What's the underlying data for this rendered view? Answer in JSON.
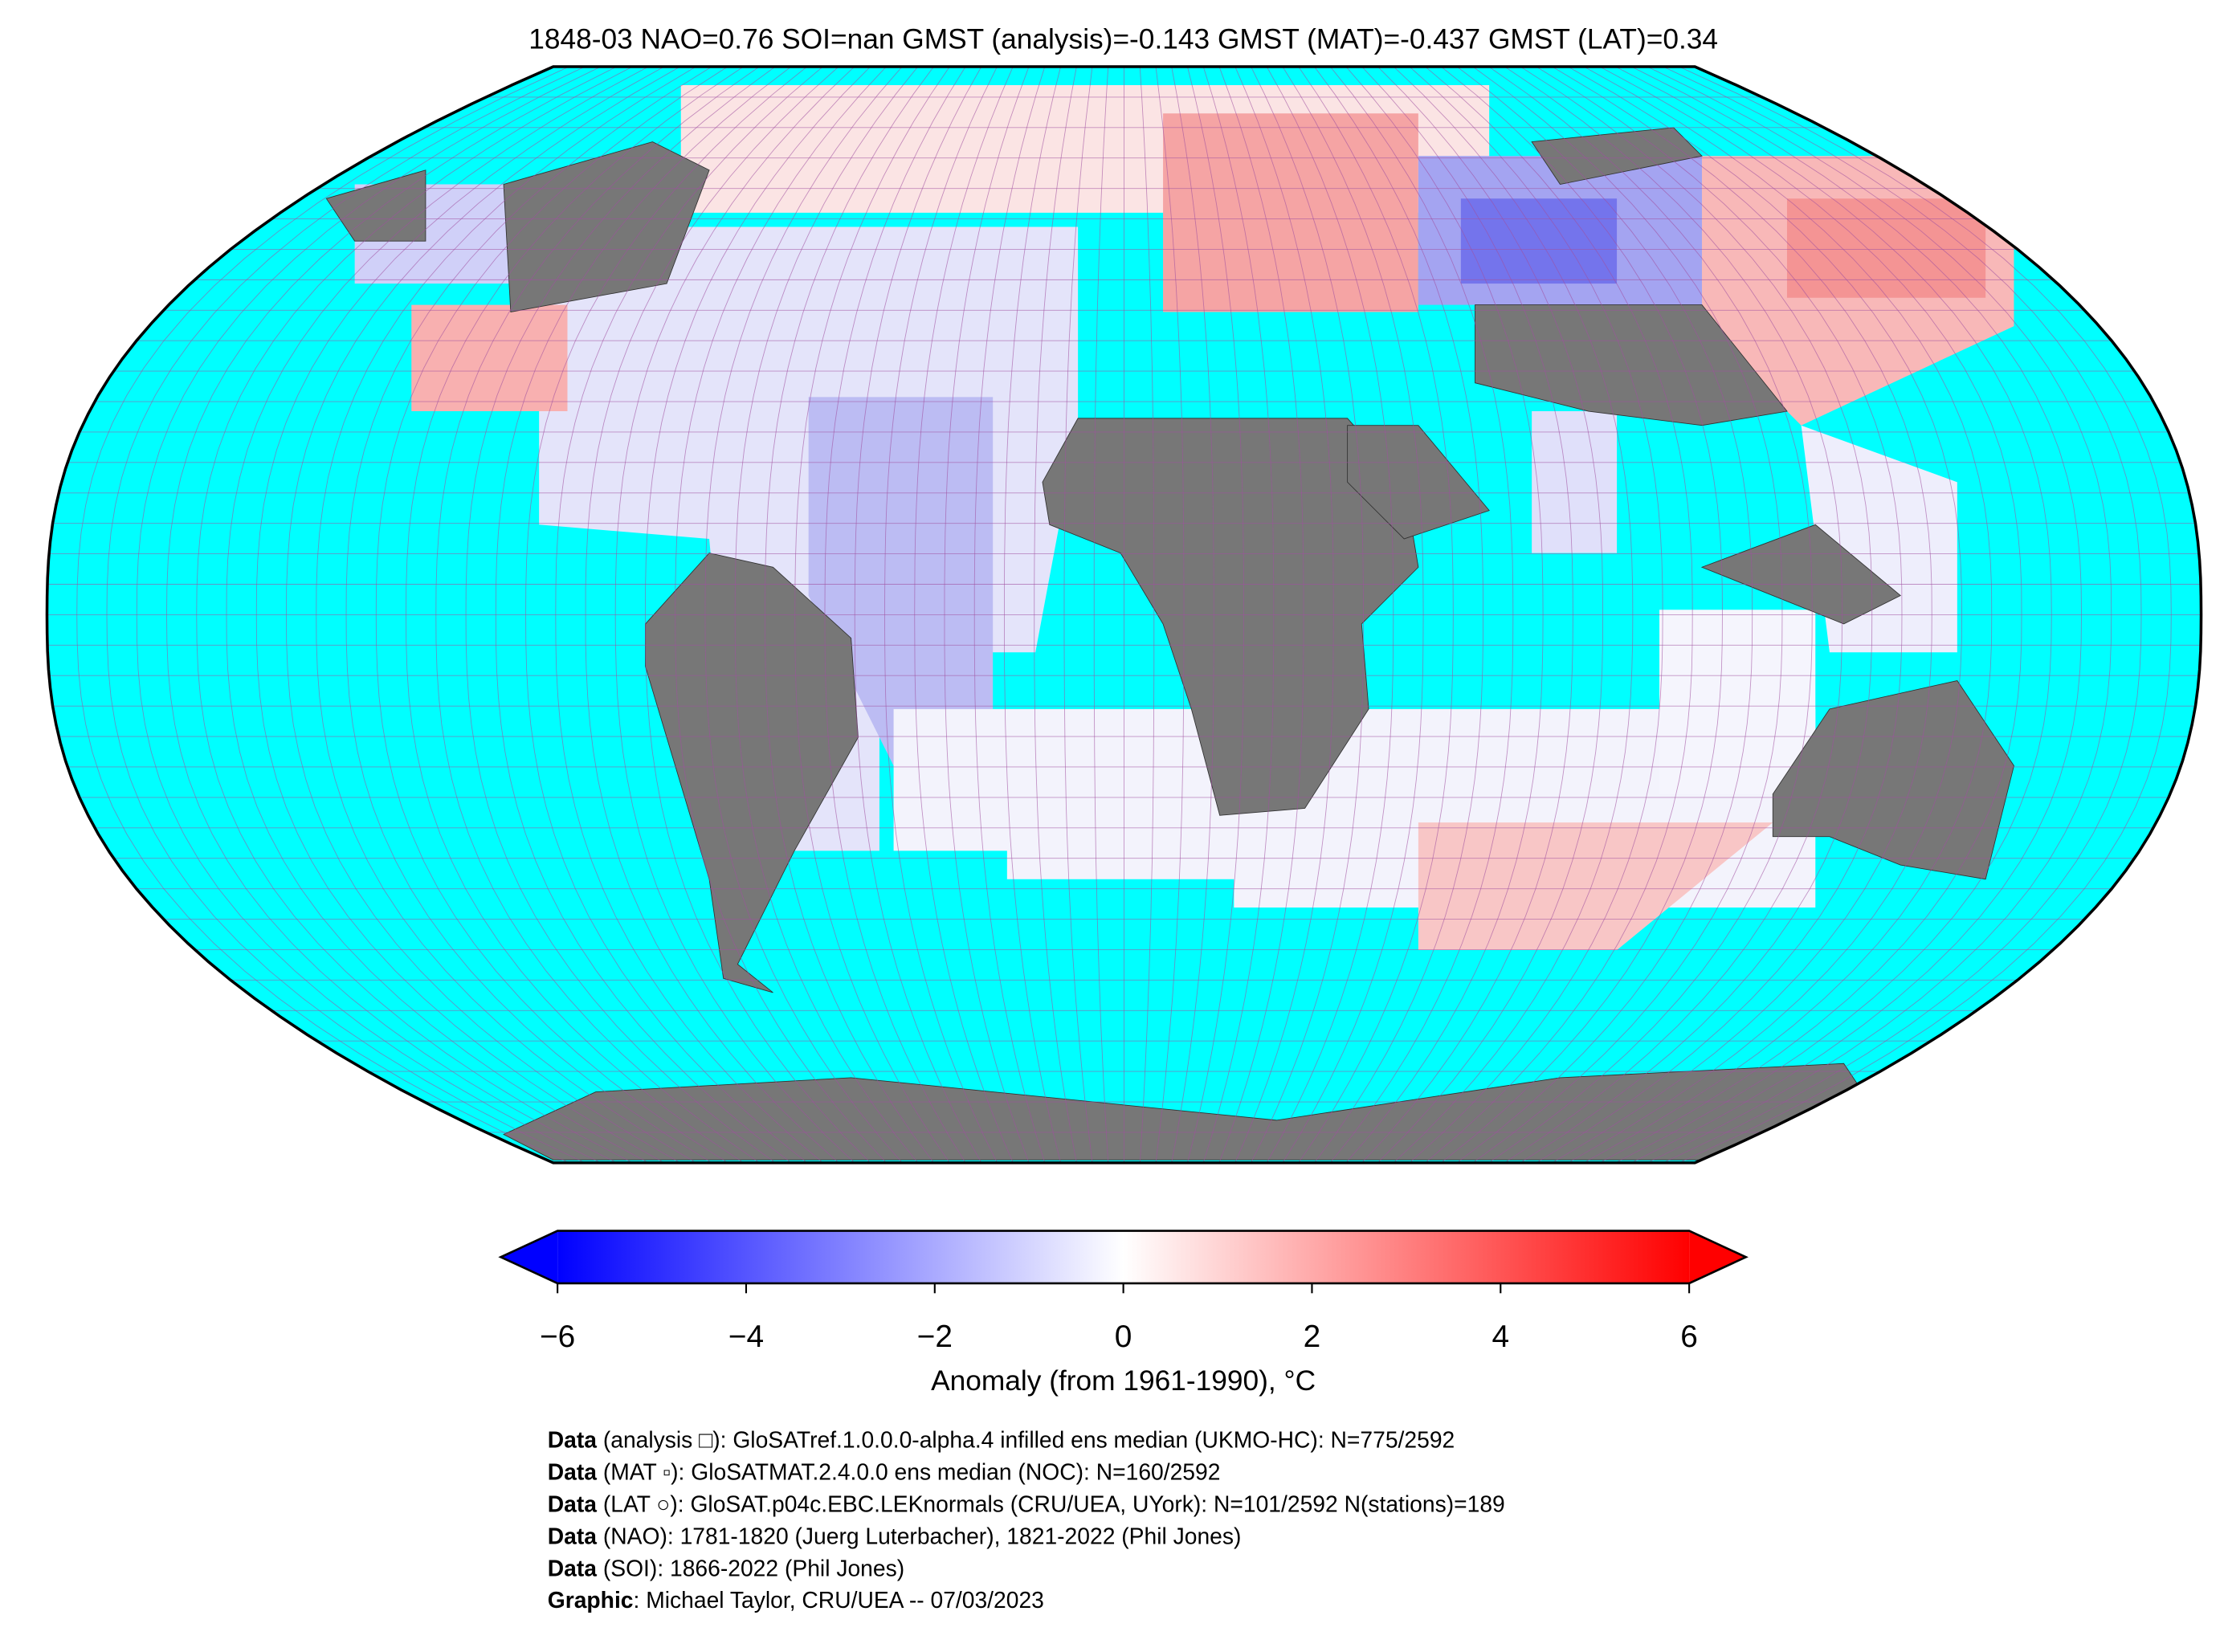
{
  "title": "1848-03 NAO=0.76 SOI=nan GMST (analysis)=-0.143 GMST (MAT)=-0.437 GMST (LAT)=0.34",
  "colorbar": {
    "label": "Anomaly (from 1961-1990), °C",
    "lim": [
      -6,
      6
    ],
    "ticks": [
      {
        "value": -6,
        "label": "−6"
      },
      {
        "value": -4,
        "label": "−4"
      },
      {
        "value": -2,
        "label": "−2"
      },
      0,
      2,
      4,
      6
    ]
  },
  "credits": [
    {
      "key": "Data",
      "text": " (analysis □): GloSATref.1.0.0.0-alpha.4 infilled ens median (UKMO-HC): N=775/2592"
    },
    {
      "key": "Data",
      "text": " (MAT ▫): GloSATMAT.2.4.0.0 ens median (NOC): N=160/2592"
    },
    {
      "key": "Data",
      "text": " (LAT ○): GloSAT.p04c.EBC.LEKnormals (CRU/UEA, UYork): N=101/2592 N(stations)=189"
    },
    {
      "key": "Data",
      "text": " (NAO): 1781-1820 (Juerg Luterbacher), 1821-2022 (Phil Jones)"
    },
    {
      "key": "Data",
      "text": " (SOI): 1866-2022 (Phil Jones)"
    },
    {
      "key": "Graphic",
      "text": ": Michael Taylor, CRU/UEA -- 07/03/2023"
    }
  ]
}
